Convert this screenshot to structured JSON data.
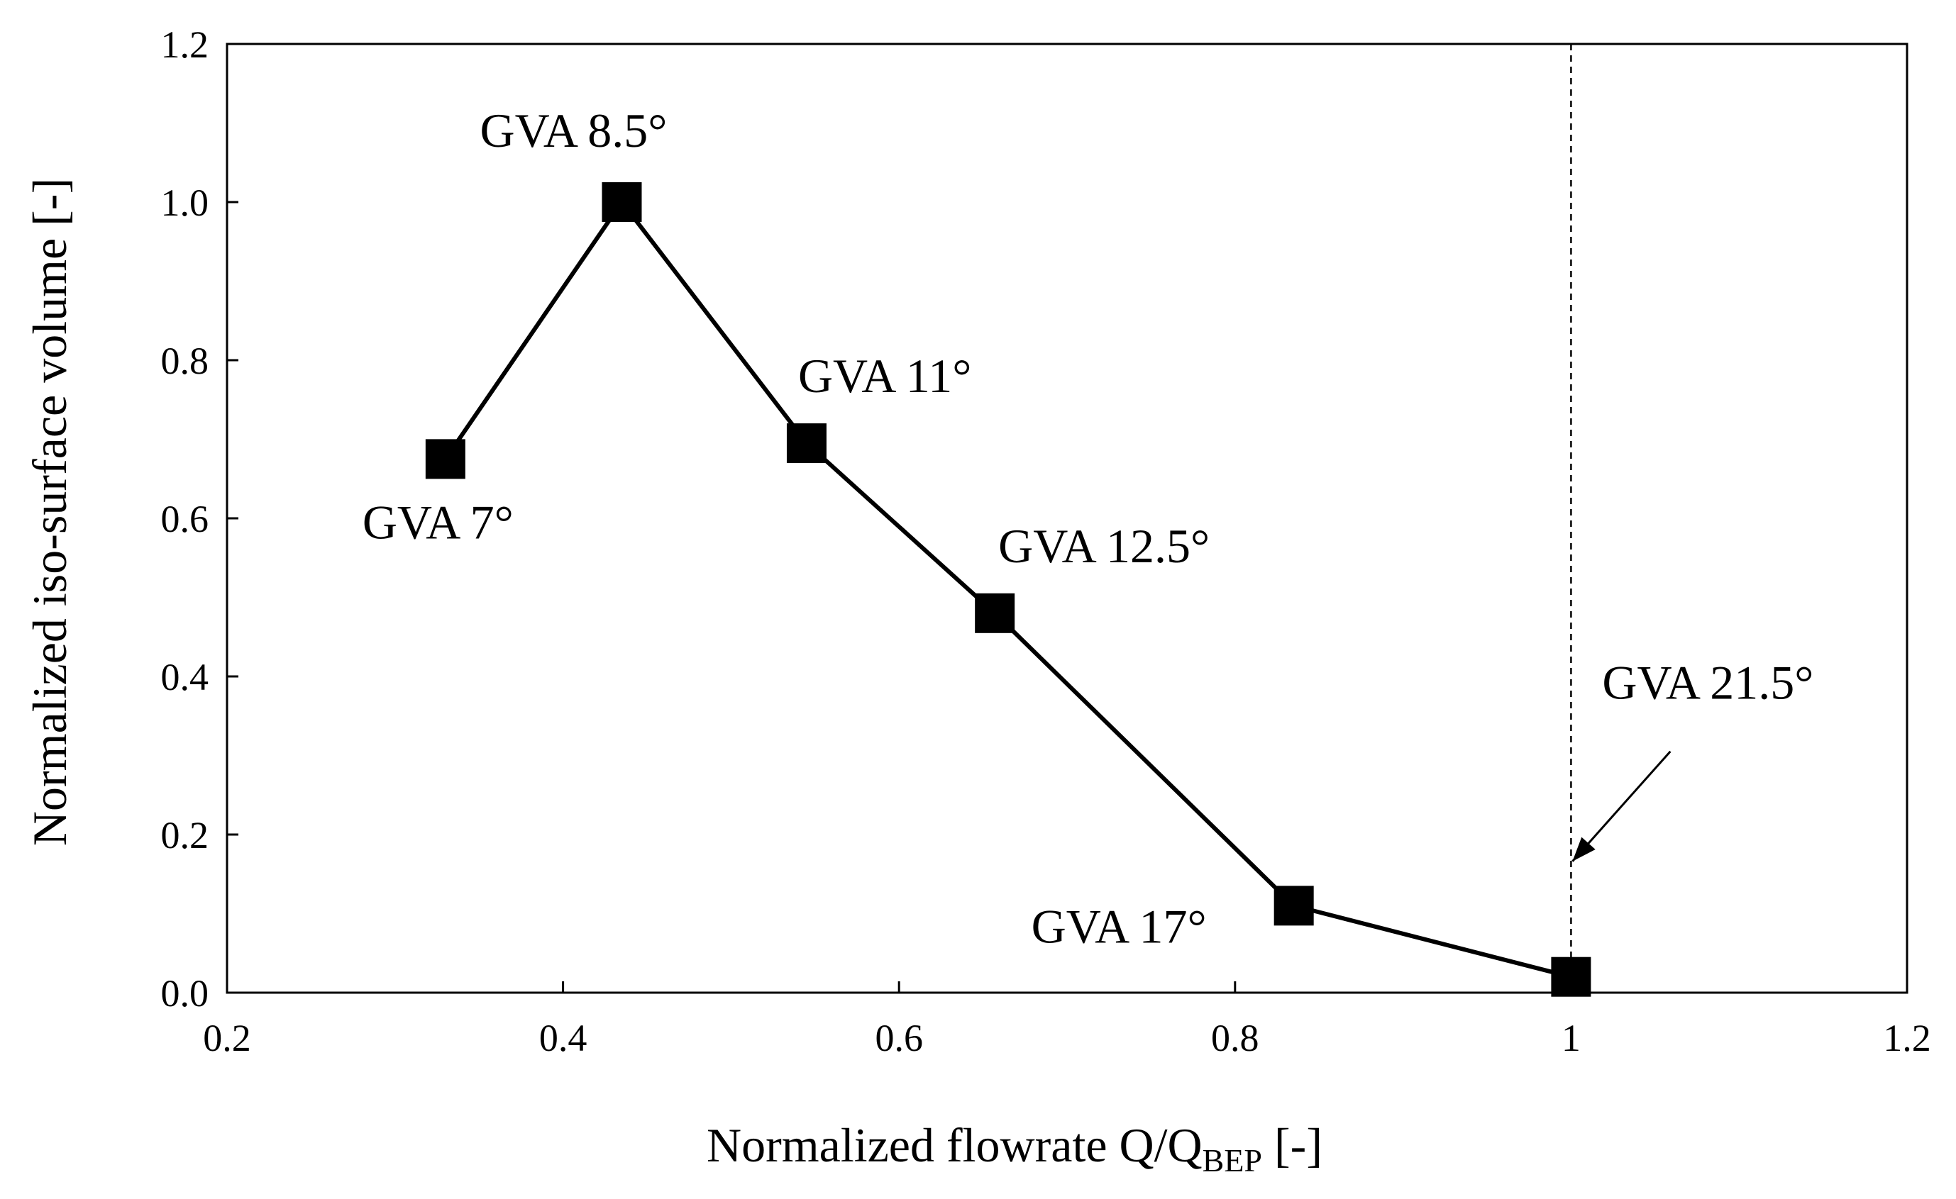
{
  "chart_data": {
    "type": "line",
    "title": "",
    "xlabel": {
      "main": "Normalized flowrate Q/Q",
      "sub": "BEP",
      "suffix": " [-]"
    },
    "ylabel": "Normalized iso-surface volume [-]",
    "xlim": [
      0.2,
      1.2
    ],
    "ylim": [
      0.0,
      1.2
    ],
    "xticks": [
      0.2,
      0.4,
      0.6,
      0.8,
      1,
      1.2
    ],
    "xtick_labels": [
      "0.2",
      "0.4",
      "0.6",
      "0.8",
      "1",
      "1.2"
    ],
    "yticks": [
      0.0,
      0.2,
      0.4,
      0.6,
      0.8,
      1.0,
      1.2
    ],
    "ytick_labels": [
      "0.0",
      "0.2",
      "0.4",
      "0.6",
      "0.8",
      "1.0",
      "1.2"
    ],
    "grid": false,
    "marker": "square",
    "line_color": "#000000",
    "reference_line": {
      "x": 1.0,
      "style": "dashed"
    },
    "series": [
      {
        "name": "Normalized iso-surface volume",
        "x": [
          0.33,
          0.435,
          0.545,
          0.657,
          0.835,
          1.0
        ],
        "y": [
          0.675,
          1.0,
          0.695,
          0.48,
          0.11,
          0.02
        ]
      }
    ],
    "annotations": [
      {
        "text": "GVA 7°",
        "point": 0,
        "anchor": "below-left"
      },
      {
        "text": "GVA 8.5°",
        "point": 1,
        "anchor": "above"
      },
      {
        "text": "GVA 11°",
        "point": 2,
        "anchor": "above-right"
      },
      {
        "text": "GVA 12.5°",
        "point": 3,
        "anchor": "above-right"
      },
      {
        "text": "GVA 17°",
        "point": 4,
        "anchor": "left"
      },
      {
        "text": "GVA 21.5°",
        "point": 5,
        "anchor": "arrow-upper-right"
      }
    ]
  }
}
